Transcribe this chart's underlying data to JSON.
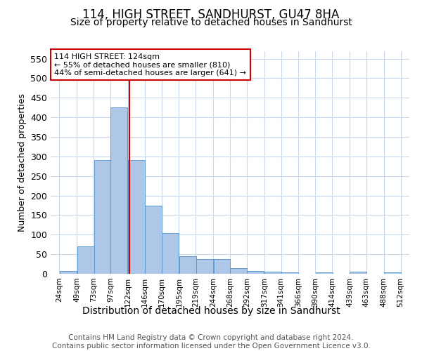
{
  "title": "114, HIGH STREET, SANDHURST, GU47 8HA",
  "subtitle": "Size of property relative to detached houses in Sandhurst",
  "xlabel": "Distribution of detached houses by size in Sandhurst",
  "ylabel": "Number of detached properties",
  "bar_color": "#aec6e8",
  "bar_edgecolor": "#5b9bd5",
  "background_color": "#ffffff",
  "grid_color": "#c8d8e8",
  "vline_x": 124,
  "vline_color": "#cc0000",
  "annotation_text": "114 HIGH STREET: 124sqm\n← 55% of detached houses are smaller (810)\n44% of semi-detached houses are larger (641) →",
  "annotation_box_color": "#ffffff",
  "annotation_box_edgecolor": "#cc0000",
  "bins": [
    24,
    49,
    73,
    97,
    122,
    146,
    170,
    195,
    219,
    244,
    268,
    292,
    317,
    341,
    366,
    390,
    414,
    439,
    463,
    488,
    512
  ],
  "bar_heights": [
    8,
    70,
    290,
    425,
    290,
    175,
    105,
    44,
    37,
    38,
    15,
    8,
    5,
    3,
    0,
    3,
    0,
    5,
    0,
    3
  ],
  "ylim": [
    0,
    570
  ],
  "yticks": [
    0,
    50,
    100,
    150,
    200,
    250,
    300,
    350,
    400,
    450,
    500,
    550
  ],
  "footer_text": "Contains HM Land Registry data © Crown copyright and database right 2024.\nContains public sector information licensed under the Open Government Licence v3.0.",
  "title_fontsize": 12,
  "subtitle_fontsize": 10,
  "xlabel_fontsize": 10,
  "ylabel_fontsize": 9,
  "footer_fontsize": 7.5,
  "annotation_fontsize": 8
}
